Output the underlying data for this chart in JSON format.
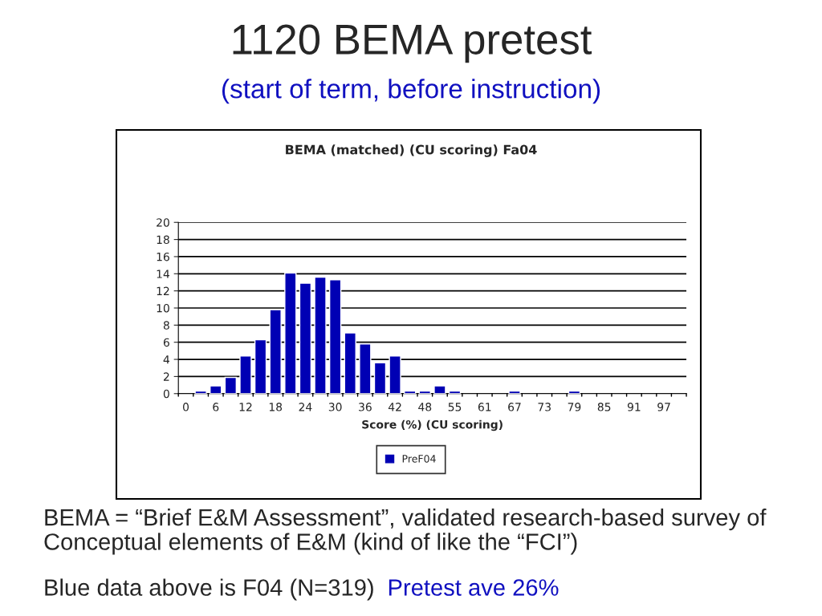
{
  "chart_data": {
    "type": "bar",
    "title": "1120 BEMA pretest",
    "subtitle": "(start of term, before instruction)",
    "xlabel": "Score (%) (CU scoring)",
    "categories": [
      "0",
      null,
      "6",
      null,
      "12",
      null,
      "18",
      null,
      "24",
      null,
      "30",
      null,
      "36",
      null,
      "42",
      null,
      "48",
      null,
      "55",
      null,
      "61",
      null,
      "67",
      null,
      "73",
      null,
      "79",
      null,
      "85",
      null,
      "91",
      null,
      "97",
      null
    ],
    "series": [
      {
        "name": "PreF04",
        "color": "#0000b4",
        "values": [
          null,
          0.3,
          0.9,
          1.9,
          4.4,
          6.3,
          9.8,
          14.1,
          12.9,
          13.6,
          13.3,
          7.1,
          5.8,
          3.6,
          4.4,
          0.3,
          0.3,
          0.9,
          0.3,
          null,
          null,
          null,
          0.3,
          null,
          null,
          null,
          0.3,
          null,
          null,
          null,
          null,
          null,
          null,
          null
        ]
      }
    ],
    "ylim": [
      0,
      20
    ],
    "yticks": [
      0,
      2,
      4,
      6,
      8,
      10,
      12,
      14,
      16,
      18,
      20
    ],
    "grid": "y",
    "legend": "bottom",
    "annotations": [
      "BEMA (matched) (CU scoring) Fa04",
      "BEMA = “Brief E&M Assessment”, validated research-based survey of Conceptual elements of E&M (kind of like the “FCI”)",
      "Blue data above is F04 (N=319)",
      "Pretest ave 26%"
    ]
  }
}
